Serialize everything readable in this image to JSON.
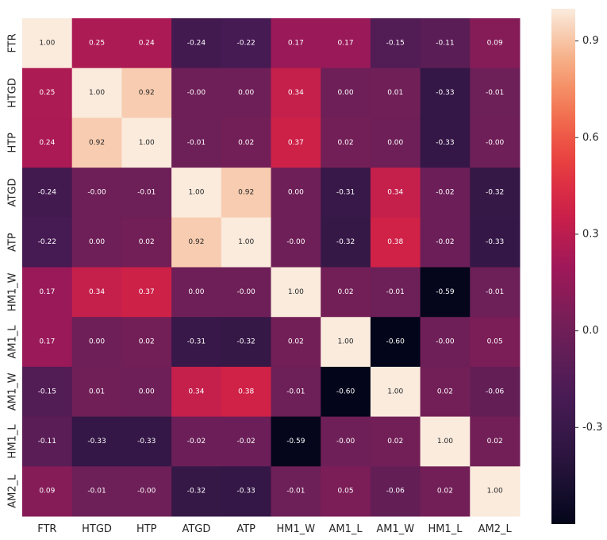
{
  "chart_data": {
    "type": "heatmap",
    "title": "",
    "xlabel": "",
    "ylabel": "",
    "x_labels": [
      "FTR",
      "HTGD",
      "HTP",
      "ATGD",
      "ATP",
      "HM1_W",
      "AM1_L",
      "AM1_W",
      "HM1_L",
      "AM2_L"
    ],
    "y_labels": [
      "FTR",
      "HTGD",
      "HTP",
      "ATGD",
      "ATP",
      "HM1_W",
      "AM1_L",
      "AM1_W",
      "HM1_L",
      "AM2_L"
    ],
    "values": [
      [
        1.0,
        0.25,
        0.24,
        -0.24,
        -0.22,
        0.17,
        0.17,
        -0.15,
        -0.11,
        0.09
      ],
      [
        0.25,
        1.0,
        0.92,
        -0.0,
        0.0,
        0.34,
        0.0,
        0.01,
        -0.33,
        -0.01
      ],
      [
        0.24,
        0.92,
        1.0,
        -0.01,
        0.02,
        0.37,
        0.02,
        0.0,
        -0.33,
        -0.0
      ],
      [
        -0.24,
        -0.0,
        -0.01,
        1.0,
        0.92,
        0.0,
        -0.31,
        0.34,
        -0.02,
        -0.32
      ],
      [
        -0.22,
        0.0,
        0.02,
        0.92,
        1.0,
        -0.0,
        -0.32,
        0.38,
        -0.02,
        -0.33
      ],
      [
        0.17,
        0.34,
        0.37,
        0.0,
        -0.0,
        1.0,
        0.02,
        -0.01,
        -0.59,
        -0.01
      ],
      [
        0.17,
        0.0,
        0.02,
        -0.31,
        -0.32,
        0.02,
        1.0,
        -0.6,
        -0.0,
        0.05
      ],
      [
        -0.15,
        0.01,
        0.0,
        0.34,
        0.38,
        -0.01,
        -0.6,
        1.0,
        0.02,
        -0.06
      ],
      [
        -0.11,
        -0.33,
        -0.33,
        -0.02,
        -0.02,
        -0.59,
        -0.0,
        0.02,
        1.0,
        0.02
      ],
      [
        0.09,
        -0.01,
        -0.0,
        -0.32,
        -0.33,
        -0.01,
        0.05,
        -0.06,
        0.02,
        1.0
      ]
    ],
    "value_labels": [
      [
        "1.00",
        "0.25",
        "0.24",
        "-0.24",
        "-0.22",
        "0.17",
        "0.17",
        "-0.15",
        "-0.11",
        "0.09"
      ],
      [
        "0.25",
        "1.00",
        "0.92",
        "-0.00",
        "0.00",
        "0.34",
        "0.00",
        "0.01",
        "-0.33",
        "-0.01"
      ],
      [
        "0.24",
        "0.92",
        "1.00",
        "-0.01",
        "0.02",
        "0.37",
        "0.02",
        "0.00",
        "-0.33",
        "-0.00"
      ],
      [
        "-0.24",
        "-0.00",
        "-0.01",
        "1.00",
        "0.92",
        "0.00",
        "-0.31",
        "0.34",
        "-0.02",
        "-0.32"
      ],
      [
        "-0.22",
        "0.00",
        "0.02",
        "0.92",
        "1.00",
        "-0.00",
        "-0.32",
        "0.38",
        "-0.02",
        "-0.33"
      ],
      [
        "0.17",
        "0.34",
        "0.37",
        "0.00",
        "-0.00",
        "1.00",
        "0.02",
        "-0.01",
        "-0.59",
        "-0.01"
      ],
      [
        "0.17",
        "0.00",
        "0.02",
        "-0.31",
        "-0.32",
        "0.02",
        "1.00",
        "-0.60",
        "-0.00",
        "0.05"
      ],
      [
        "-0.15",
        "0.01",
        "0.00",
        "0.34",
        "0.38",
        "-0.01",
        "-0.60",
        "1.00",
        "0.02",
        "-0.06"
      ],
      [
        "-0.11",
        "-0.33",
        "-0.33",
        "-0.02",
        "-0.02",
        "-0.59",
        "-0.00",
        "0.02",
        "1.00",
        "0.02"
      ],
      [
        "0.09",
        "-0.01",
        "-0.00",
        "-0.32",
        "-0.33",
        "-0.01",
        "0.05",
        "-0.06",
        "0.02",
        "1.00"
      ]
    ],
    "colormap": "rocket",
    "value_range": [
      -0.6,
      1.0
    ],
    "colorbar": {
      "position": "right",
      "ticks": [
        0.9,
        0.6,
        0.3,
        0.0,
        -0.3
      ],
      "tick_labels": [
        "0.9",
        "0.6",
        "0.3",
        "0.0",
        "-0.3"
      ]
    },
    "grid": false
  }
}
